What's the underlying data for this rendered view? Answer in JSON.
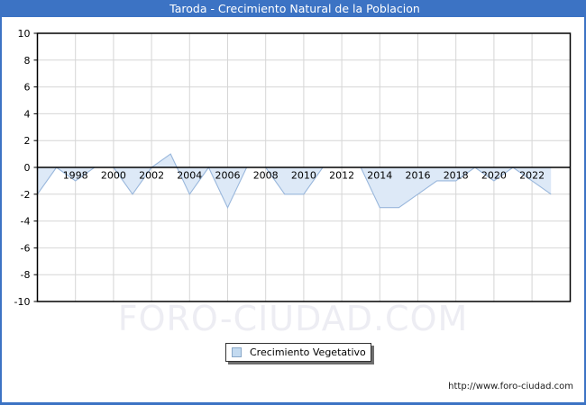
{
  "header": {
    "title": "Taroda - Crecimiento Natural de la Poblacion"
  },
  "legend": {
    "label": "Crecimiento Vegetativo"
  },
  "footer": {
    "url": "http://www.foro-ciudad.com",
    "watermark": "FORO-CIUDAD.COM"
  },
  "colors": {
    "titlebar": "#3c73c4",
    "page_border": "#3c73c4",
    "area_fill": "#dde9f7",
    "area_line": "#99b7dc",
    "grid": "#d6d6d6",
    "axis": "#000000",
    "tick_text": "#000000",
    "watermark": "#ededf3",
    "legend_swatch_fill": "#c3daf0",
    "legend_swatch_border": "#8aa8c8"
  },
  "chart_data": {
    "type": "area",
    "title": "Taroda - Crecimiento Natural de la Poblacion",
    "x": [
      1996,
      1997,
      1998,
      1999,
      2000,
      2001,
      2002,
      2003,
      2004,
      2005,
      2006,
      2007,
      2008,
      2009,
      2010,
      2011,
      2012,
      2013,
      2014,
      2015,
      2016,
      2017,
      2018,
      2019,
      2020,
      2021,
      2022,
      2023
    ],
    "series": [
      {
        "name": "Crecimiento Vegetativo",
        "values": [
          -2,
          0,
          -1,
          0,
          0,
          -2,
          0,
          1,
          -2,
          0,
          -3,
          0,
          0,
          -2,
          -2,
          0,
          0,
          0,
          -3,
          -3,
          -2,
          -1,
          -1,
          0,
          -1,
          0,
          -1,
          -2
        ]
      }
    ],
    "ylim": [
      -10,
      10
    ],
    "ytick_step": 2,
    "ytick_labels": [
      "10",
      "8",
      "6",
      "4",
      "2",
      "0",
      "-2",
      "-4",
      "-6",
      "-8",
      "-10"
    ],
    "xtick_labels": [
      "1998",
      "2000",
      "2002",
      "2004",
      "2006",
      "2008",
      "2010",
      "2012",
      "2014",
      "2016",
      "2018",
      "2020",
      "2022"
    ],
    "grid": true,
    "legend_position": "bottom-center",
    "baseline": 0
  }
}
